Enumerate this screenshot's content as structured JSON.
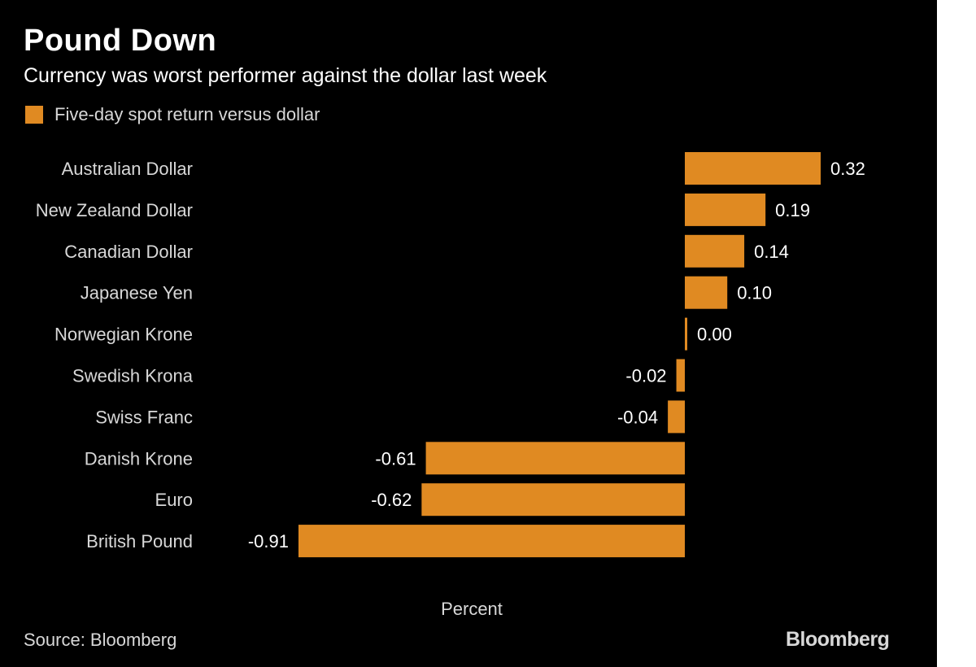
{
  "title": "Pound Down",
  "subtitle": "Currency was worst performer against the dollar last week",
  "legend_label": "Five-day spot return versus dollar",
  "source": "Source: Bloomberg",
  "brand": "Bloomberg",
  "colors": {
    "background": "#000000",
    "bar": "#e08a22",
    "text": "#ffffff",
    "muted_text": "#d8d8d8"
  },
  "chart_data": {
    "type": "bar",
    "orientation": "horizontal",
    "categories": [
      "Australian Dollar",
      "New Zealand Dollar",
      "Canadian Dollar",
      "Japanese Yen",
      "Norwegian Krone",
      "Swedish Krona",
      "Swiss Franc",
      "Danish Krone",
      "Euro",
      "British Pound"
    ],
    "values": [
      0.32,
      0.19,
      0.14,
      0.1,
      0.0,
      -0.02,
      -0.04,
      -0.61,
      -0.62,
      -0.91
    ],
    "value_labels": [
      "0.32",
      "0.19",
      "0.14",
      "0.10",
      "0.00",
      "-0.02",
      "-0.04",
      "-0.61",
      "-0.62",
      "-0.91"
    ],
    "series": [
      {
        "name": "Five-day spot return versus dollar",
        "values": [
          0.32,
          0.19,
          0.14,
          0.1,
          0.0,
          -0.02,
          -0.04,
          -0.61,
          -0.62,
          -0.91
        ]
      }
    ],
    "title": "Pound Down",
    "subtitle": "Currency was worst performer against the dollar last week",
    "xlabel": "Percent",
    "ylabel": "",
    "xlim": [
      -0.91,
      0.32
    ],
    "grid": false,
    "legend": "top-left"
  }
}
